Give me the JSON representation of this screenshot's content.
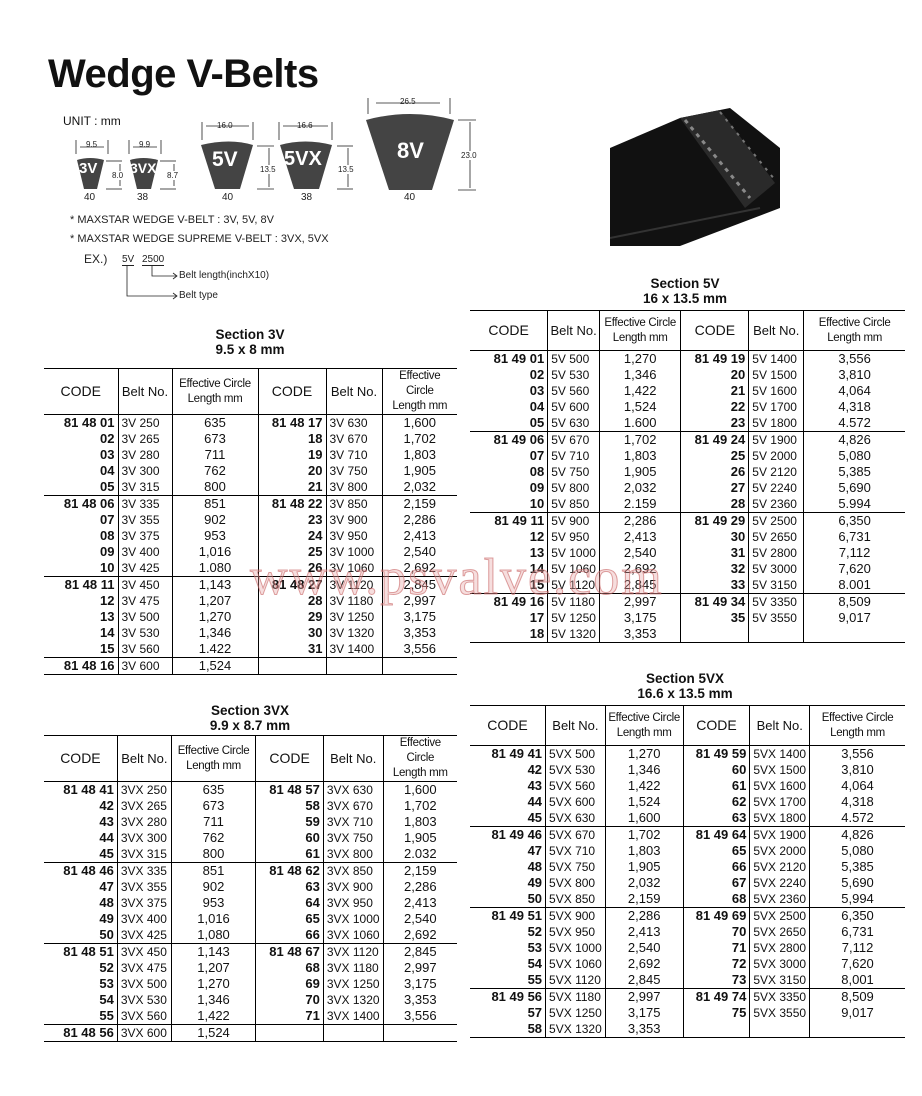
{
  "title": "Wedge V-Belts",
  "diagram": {
    "unit_label": "UNIT : mm",
    "profiles": [
      {
        "name": "3V",
        "top_width": "9.5",
        "height": "8.0",
        "angle": "40"
      },
      {
        "name": "3VX",
        "top_width": "9.9",
        "height": "8.7",
        "angle": "38"
      },
      {
        "name": "5V",
        "top_width": "16.0",
        "height": "13.5",
        "angle": "40"
      },
      {
        "name": "5VX",
        "top_width": "16.6",
        "height": "13.5",
        "angle": "38"
      },
      {
        "name": "8V",
        "top_width": "26.5",
        "height": "23.0",
        "angle": "40"
      }
    ],
    "notes": [
      "* MAXSTAR WEDGE V-BELT : 3V, 5V, 8V",
      "* MAXSTAR WEDGE SUPREME V-BELT : 3VX, 5VX"
    ],
    "example": {
      "label": "EX.)",
      "type": "5V",
      "length": "2500",
      "length_desc": "Belt length(inchX10)",
      "type_desc": "Belt type"
    }
  },
  "watermark": "www.psvalve.com",
  "headers": {
    "code": "CODE",
    "belt": "Belt No.",
    "eff1": "Effective Circle",
    "eff2": "Length mm"
  },
  "sections": [
    {
      "id": "3v",
      "title": "Section 3V",
      "size": "9.5 x 8 mm",
      "groups": [
        [
          [
            "81 48 01",
            "3V  250",
            "635",
            "81 48 17",
            "3V  630",
            "1,600"
          ],
          [
            "02",
            "3V  265",
            "673",
            "18",
            "3V  670",
            "1,702"
          ],
          [
            "03",
            "3V  280",
            "711",
            "19",
            "3V  710",
            "1,803"
          ],
          [
            "04",
            "3V  300",
            "762",
            "20",
            "3V  750",
            "1,905"
          ],
          [
            "05",
            "3V  315",
            "800",
            "21",
            "3V  800",
            "2,032"
          ]
        ],
        [
          [
            "81 48 06",
            "3V  335",
            "851",
            "81 48 22",
            "3V  850",
            "2,159"
          ],
          [
            "07",
            "3V  355",
            "902",
            "23",
            "3V  900",
            "2,286"
          ],
          [
            "08",
            "3V  375",
            "953",
            "24",
            "3V  950",
            "2,413"
          ],
          [
            "09",
            "3V  400",
            "1,016",
            "25",
            "3V 1000",
            "2,540"
          ],
          [
            "10",
            "3V  425",
            "1.080",
            "26",
            "3V 1060",
            "2,692"
          ]
        ],
        [
          [
            "81 48 11",
            "3V  450",
            "1,143",
            "81 48 27",
            "3V 1120",
            "2,845"
          ],
          [
            "12",
            "3V  475",
            "1,207",
            "28",
            "3V 1180",
            "2,997"
          ],
          [
            "13",
            "3V  500",
            "1,270",
            "29",
            "3V 1250",
            "3,175"
          ],
          [
            "14",
            "3V  530",
            "1,346",
            "30",
            "3V 1320",
            "3,353"
          ],
          [
            "15",
            "3V  560",
            "1.422",
            "31",
            "3V 1400",
            "3,556"
          ]
        ],
        [
          [
            "81 48 16",
            "3V  600",
            "1,524",
            "",
            "",
            ""
          ]
        ]
      ]
    },
    {
      "id": "3vx",
      "title": "Section 3VX",
      "size": "9.9 x 8.7 mm",
      "groups": [
        [
          [
            "81 48 41",
            "3VX 250",
            "635",
            "81 48 57",
            "3VX 630",
            "1,600"
          ],
          [
            "42",
            "3VX 265",
            "673",
            "58",
            "3VX 670",
            "1,702"
          ],
          [
            "43",
            "3VX 280",
            "711",
            "59",
            "3VX 710",
            "1,803"
          ],
          [
            "44",
            "3VX 300",
            "762",
            "60",
            "3VX 750",
            "1,905"
          ],
          [
            "45",
            "3VX 315",
            "800",
            "61",
            "3VX 800",
            "2.032"
          ]
        ],
        [
          [
            "81 48 46",
            "3VX 335",
            "851",
            "81 48 62",
            "3VX 850",
            "2,159"
          ],
          [
            "47",
            "3VX 355",
            "902",
            "63",
            "3VX 900",
            "2,286"
          ],
          [
            "48",
            "3VX 375",
            "953",
            "64",
            "3VX 950",
            "2,413"
          ],
          [
            "49",
            "3VX 400",
            "1,016",
            "65",
            "3VX 1000",
            "2,540"
          ],
          [
            "50",
            "3VX 425",
            "1,080",
            "66",
            "3VX 1060",
            "2,692"
          ]
        ],
        [
          [
            "81 48 51",
            "3VX 450",
            "1,143",
            "81 48 67",
            "3VX 1120",
            "2,845"
          ],
          [
            "52",
            "3VX 475",
            "1,207",
            "68",
            "3VX 1180",
            "2,997"
          ],
          [
            "53",
            "3VX 500",
            "1,270",
            "69",
            "3VX 1250",
            "3,175"
          ],
          [
            "54",
            "3VX 530",
            "1,346",
            "70",
            "3VX 1320",
            "3,353"
          ],
          [
            "55",
            "3VX 560",
            "1,422",
            "71",
            "3VX 1400",
            "3,556"
          ]
        ],
        [
          [
            "81 48 56",
            "3VX 600",
            "1,524",
            "",
            "",
            ""
          ]
        ]
      ]
    },
    {
      "id": "5v",
      "title": "Section 5V",
      "size": "16 x 13.5 mm",
      "groups": [
        [
          [
            "81 49 01",
            "5V  500",
            "1,270",
            "81 49 19",
            "5V 1400",
            "3,556"
          ],
          [
            "02",
            "5V  530",
            "1,346",
            "20",
            "5V 1500",
            "3,810"
          ],
          [
            "03",
            "5V  560",
            "1,422",
            "21",
            "5V 1600",
            "4,064"
          ],
          [
            "04",
            "5V  600",
            "1,524",
            "22",
            "5V 1700",
            "4,318"
          ],
          [
            "05",
            "5V  630",
            "1.600",
            "23",
            "5V 1800",
            "4.572"
          ]
        ],
        [
          [
            "81 49 06",
            "5V  670",
            "1,702",
            "81 49 24",
            "5V 1900",
            "4,826"
          ],
          [
            "07",
            "5V  710",
            "1,803",
            "25",
            "5V 2000",
            "5,080"
          ],
          [
            "08",
            "5V  750",
            "1,905",
            "26",
            "5V 2120",
            "5,385"
          ],
          [
            "09",
            "5V  800",
            "2,032",
            "27",
            "5V 2240",
            "5,690"
          ],
          [
            "10",
            "5V  850",
            "2.159",
            "28",
            "5V 2360",
            "5.994"
          ]
        ],
        [
          [
            "81 49 11",
            "5V  900",
            "2,286",
            "81 49 29",
            "5V 2500",
            "6,350"
          ],
          [
            "12",
            "5V  950",
            "2,413",
            "30",
            "5V 2650",
            "6,731"
          ],
          [
            "13",
            "5V 1000",
            "2,540",
            "31",
            "5V 2800",
            "7,112"
          ],
          [
            "14",
            "5V 1060",
            "2,692",
            "32",
            "5V 3000",
            "7,620"
          ],
          [
            "15",
            "5V 1120",
            "2,845",
            "33",
            "5V 3150",
            "8.001"
          ]
        ],
        [
          [
            "81 49 16",
            "5V 1180",
            "2,997",
            "81 49 34",
            "5V 3350",
            "8,509"
          ],
          [
            "17",
            "5V 1250",
            "3,175",
            "35",
            "5V 3550",
            "9,017"
          ],
          [
            "18",
            "5V 1320",
            "3,353",
            "",
            "",
            ""
          ]
        ]
      ]
    },
    {
      "id": "5vx",
      "title": "Section 5VX",
      "size": "16.6 x 13.5 mm",
      "groups": [
        [
          [
            "81 49 41",
            "5VX 500",
            "1,270",
            "81 49 59",
            "5VX 1400",
            "3,556"
          ],
          [
            "42",
            "5VX 530",
            "1,346",
            "60",
            "5VX 1500",
            "3,810"
          ],
          [
            "43",
            "5VX 560",
            "1,422",
            "61",
            "5VX 1600",
            "4,064"
          ],
          [
            "44",
            "5VX 600",
            "1,524",
            "62",
            "5VX 1700",
            "4,318"
          ],
          [
            "45",
            "5VX 630",
            "1,600",
            "63",
            "5VX 1800",
            "4.572"
          ]
        ],
        [
          [
            "81 49 46",
            "5VX 670",
            "1,702",
            "81 49 64",
            "5VX 1900",
            "4,826"
          ],
          [
            "47",
            "5VX 710",
            "1,803",
            "65",
            "5VX 2000",
            "5,080"
          ],
          [
            "48",
            "5VX 750",
            "1,905",
            "66",
            "5VX 2120",
            "5,385"
          ],
          [
            "49",
            "5VX 800",
            "2,032",
            "67",
            "5VX 2240",
            "5,690"
          ],
          [
            "50",
            "5VX 850",
            "2,159",
            "68",
            "5VX 2360",
            "5,994"
          ]
        ],
        [
          [
            "81 49 51",
            "5VX 900",
            "2,286",
            "81 49 69",
            "5VX 2500",
            "6,350"
          ],
          [
            "52",
            "5VX 950",
            "2,413",
            "70",
            "5VX 2650",
            "6,731"
          ],
          [
            "53",
            "5VX 1000",
            "2,540",
            "71",
            "5VX 2800",
            "7,112"
          ],
          [
            "54",
            "5VX 1060",
            "2,692",
            "72",
            "5VX 3000",
            "7,620"
          ],
          [
            "55",
            "5VX 1120",
            "2,845",
            "73",
            "5VX 3150",
            "8,001"
          ]
        ],
        [
          [
            "81 49 56",
            "5VX 1180",
            "2,997",
            "81 49 74",
            "5VX 3350",
            "8,509"
          ],
          [
            "57",
            "5VX 1250",
            "3,175",
            "75",
            "5VX 3550",
            "9,017"
          ],
          [
            "58",
            "5VX 1320",
            "3,353",
            "",
            "",
            ""
          ]
        ]
      ]
    }
  ]
}
